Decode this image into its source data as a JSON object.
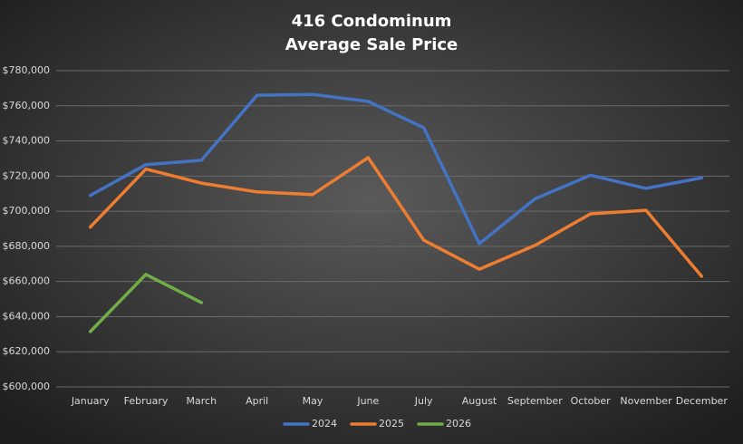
{
  "chart_data": {
    "type": "line",
    "title": "416 Condominum",
    "subtitle": "Average Sale Price",
    "categories": [
      "January",
      "February",
      "March",
      "April",
      "May",
      "June",
      "July",
      "August",
      "September",
      "October",
      "November",
      "December"
    ],
    "series": [
      {
        "name": "2024",
        "color": "#4472c4",
        "values": [
          709000,
          726500,
          729000,
          766000,
          766500,
          762500,
          747500,
          681500,
          707000,
          720500,
          713000,
          719000
        ]
      },
      {
        "name": "2025",
        "color": "#ed7d31",
        "values": [
          691000,
          724000,
          716000,
          711000,
          709500,
          730500,
          683500,
          667000,
          680500,
          698500,
          700500,
          663000
        ]
      },
      {
        "name": "2026",
        "color": "#70ad47",
        "values": [
          631500,
          664000,
          648000,
          null,
          null,
          null,
          null,
          null,
          null,
          null,
          null,
          null
        ]
      }
    ],
    "ylim": [
      600000,
      780000
    ],
    "yticks": [
      {
        "value": 600000,
        "label": "$600,000"
      },
      {
        "value": 620000,
        "label": "$620,000"
      },
      {
        "value": 640000,
        "label": "$640,000"
      },
      {
        "value": 660000,
        "label": "$660,000"
      },
      {
        "value": 680000,
        "label": "$680,000"
      },
      {
        "value": 700000,
        "label": "$700,000"
      },
      {
        "value": 720000,
        "label": "$720,000"
      },
      {
        "value": 740000,
        "label": "$740,000"
      },
      {
        "value": 760000,
        "label": "$760,000"
      },
      {
        "value": 780000,
        "label": "$780,000"
      }
    ],
    "grid": true,
    "legend": "bottom"
  }
}
